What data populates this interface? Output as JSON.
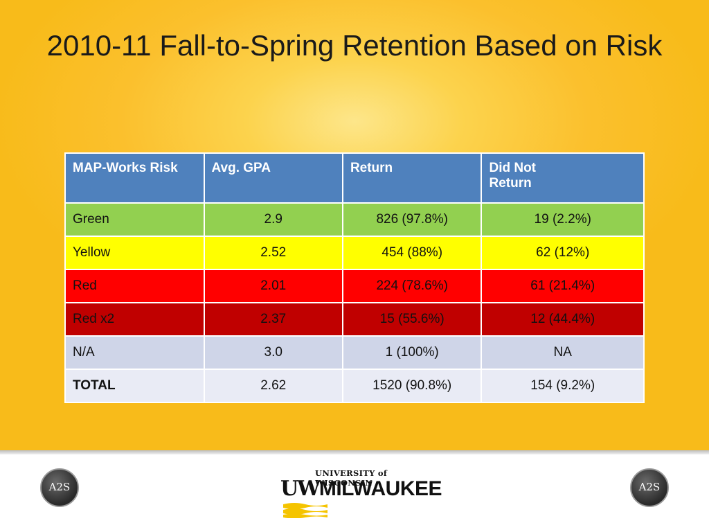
{
  "slide": {
    "title": "2010-11 Fall-to-Spring Retention Based on Risk"
  },
  "table": {
    "headers": [
      "MAP-Works Risk",
      "Avg. GPA",
      "Return",
      "Did Not Return"
    ],
    "rows": [
      {
        "risk": "Green",
        "gpa": "2.9",
        "return": "826 (97.8%)",
        "not_return": "19 (2.2%)",
        "color": "#92d050"
      },
      {
        "risk": "Yellow",
        "gpa": "2.52",
        "return": "454 (88%)",
        "not_return": "62 (12%)",
        "color": "#ffff00"
      },
      {
        "risk": "Red",
        "gpa": "2.01",
        "return": "224 (78.6%)",
        "not_return": "61 (21.4%)",
        "color": "#ff0000"
      },
      {
        "risk": "Red x2",
        "gpa": "2.37",
        "return": "15 (55.6%)",
        "not_return": "12 (44.4%)",
        "color": "#c00000"
      },
      {
        "risk": "N/A",
        "gpa": "3.0",
        "return": "1 (100%)",
        "not_return": "NA",
        "color": "#cfd5e8"
      },
      {
        "risk": "TOTAL",
        "gpa": "2.62",
        "return": "1520 (90.8%)",
        "not_return": "154 (9.2%)",
        "color": "#e9ebf5"
      }
    ]
  },
  "footer": {
    "left_badge": "A2S",
    "right_badge": "A2S",
    "logo_top": "UNIVERSITY of WISCONSIN",
    "logo_uw": "UW",
    "logo_main": "MILWAUKEE",
    "logo_icon": "uwm-flag-icon"
  },
  "colors": {
    "background": "#fbc02d",
    "header": "#4f81bd"
  }
}
